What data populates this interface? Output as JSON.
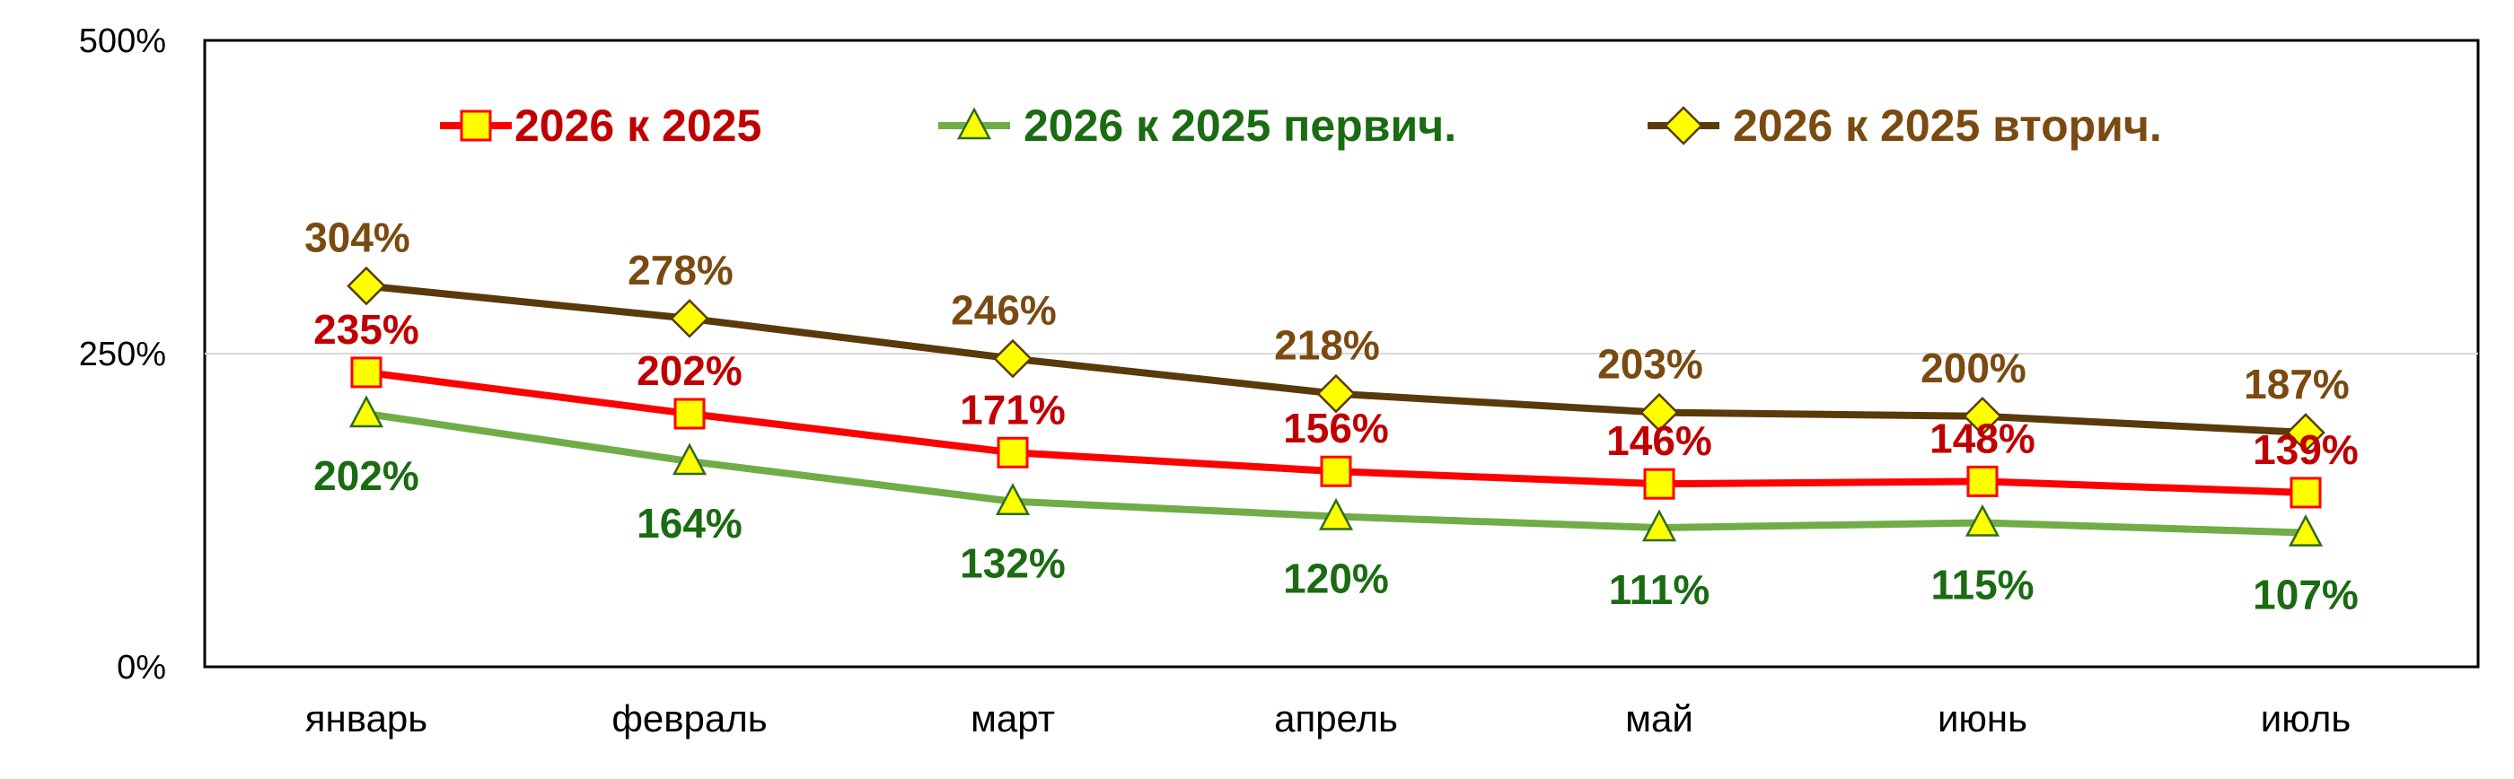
{
  "chart_data": {
    "type": "line",
    "title": "",
    "xlabel": "",
    "ylabel": "",
    "categories": [
      "январь",
      "февраль",
      "март",
      "апрель",
      "май",
      "июнь",
      "июль"
    ],
    "y_ticks": [
      "0%",
      "250%",
      "500%"
    ],
    "ylim": [
      0,
      500
    ],
    "grid": "horizontal",
    "legend_position": "top",
    "series": [
      {
        "name": "2026 к 2025",
        "values": [
          235,
          202,
          171,
          156,
          146,
          148,
          139
        ],
        "labels": [
          "235%",
          "202%",
          "171%",
          "156%",
          "146%",
          "148%",
          "139%"
        ],
        "color": "#ff0000",
        "label_color": "#c00000",
        "marker": "square",
        "marker_fill": "#ffff00"
      },
      {
        "name": "2026 к 2025 первич.",
        "values": [
          202,
          164,
          132,
          120,
          111,
          115,
          107
        ],
        "labels": [
          "202%",
          "164%",
          "132%",
          "120%",
          "111%",
          "115%",
          "107%"
        ],
        "color": "#70ad47",
        "label_color": "#1a6b12",
        "marker": "triangle",
        "marker_fill": "#ffff00"
      },
      {
        "name": "2026 к 2025 вторич.",
        "values": [
          304,
          278,
          246,
          218,
          203,
          200,
          187
        ],
        "labels": [
          "304%",
          "278%",
          "246%",
          "218%",
          "203%",
          "200%",
          "187%"
        ],
        "color": "#5a3a0a",
        "label_color": "#7a4a10",
        "marker": "diamond",
        "marker_fill": "#ffff00"
      }
    ]
  }
}
